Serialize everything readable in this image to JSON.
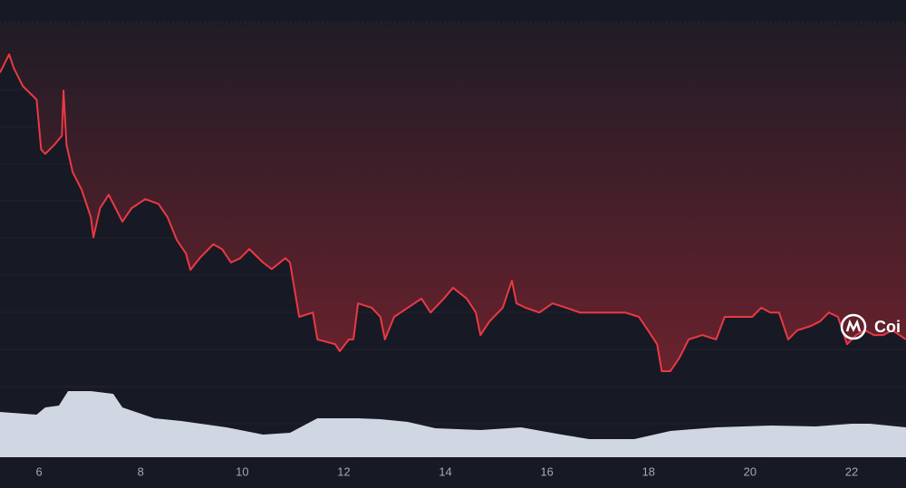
{
  "chart_data": [
    {
      "type": "line",
      "color": "#ea3943",
      "watermark": "Coi",
      "x": [
        5.23,
        5.41,
        5.5,
        5.68,
        5.95,
        6.04,
        6.12,
        6.3,
        6.45,
        6.48,
        6.54,
        6.66,
        6.84,
        7.02,
        7.07,
        7.2,
        7.37,
        7.55,
        7.64,
        7.82,
        8.09,
        8.35,
        8.53,
        8.71,
        8.89,
        8.98,
        9.16,
        9.43,
        9.6,
        9.78,
        9.96,
        10.14,
        10.41,
        10.58,
        10.85,
        10.94,
        11.12,
        11.39,
        11.48,
        11.83,
        11.92,
        12.1,
        12.19,
        12.28,
        12.55,
        12.72,
        12.81,
        12.99,
        13.26,
        13.53,
        13.71,
        13.97,
        14.15,
        14.42,
        14.6,
        14.69,
        14.87,
        15.13,
        15.31,
        15.4,
        15.58,
        15.85,
        16.11,
        16.38,
        16.65,
        16.92,
        17.18,
        17.54,
        17.81,
        17.99,
        18.17,
        18.26,
        18.43,
        18.61,
        18.79,
        19.06,
        19.33,
        19.5,
        19.77,
        20.04,
        20.22,
        20.4,
        20.57,
        20.75,
        20.93,
        21.2,
        21.38,
        21.55,
        21.73,
        21.91,
        22.09,
        22.26,
        22.44,
        22.62,
        22.8,
        23.07
      ],
      "values": [
        88.5,
        92.7,
        89.6,
        85.4,
        82.3,
        70.8,
        69.8,
        71.9,
        74.0,
        84.4,
        71.9,
        65.6,
        61.5,
        55.2,
        50.6,
        57.3,
        60.4,
        56.3,
        54.2,
        57.3,
        59.4,
        58.3,
        55.2,
        50.0,
        46.9,
        43.1,
        45.8,
        49.0,
        47.9,
        44.8,
        45.8,
        47.9,
        44.8,
        43.3,
        45.8,
        44.8,
        32.3,
        33.3,
        27.1,
        26.0,
        24.4,
        27.1,
        27.1,
        35.4,
        34.4,
        32.3,
        27.1,
        32.3,
        34.4,
        36.5,
        33.3,
        36.5,
        39.0,
        36.5,
        33.3,
        28.1,
        31.3,
        34.4,
        40.6,
        35.4,
        34.4,
        33.3,
        35.4,
        34.4,
        33.3,
        33.3,
        33.3,
        33.3,
        32.3,
        29.2,
        26.0,
        19.8,
        19.8,
        22.9,
        27.1,
        28.1,
        27.1,
        32.3,
        32.3,
        32.3,
        34.4,
        33.3,
        33.3,
        27.1,
        29.2,
        30.2,
        31.3,
        33.3,
        32.3,
        26.0,
        28.1,
        29.2,
        28.1,
        28.1,
        29.2,
        27.1
      ],
      "xlim": [
        5.23,
        23.07
      ],
      "ylim": [
        0,
        100
      ],
      "xticks": [
        6,
        8,
        10,
        12,
        14,
        16,
        18,
        20,
        22
      ]
    },
    {
      "type": "area",
      "color": "#d1d6e3",
      "x": [
        5.23,
        5.95,
        6.12,
        6.39,
        6.57,
        7.02,
        7.46,
        7.64,
        8.27,
        8.8,
        9.69,
        10.41,
        10.94,
        11.48,
        11.92,
        12.28,
        12.72,
        13.26,
        13.8,
        14.69,
        15.49,
        16.29,
        16.83,
        17.72,
        18.43,
        19.33,
        20.4,
        21.29,
        22.0,
        22.36,
        23.07
      ],
      "values": [
        50,
        47,
        55,
        57,
        73,
        73,
        70,
        55,
        43,
        40,
        33,
        25,
        27,
        43,
        43,
        43,
        42,
        39,
        32,
        30,
        33,
        25,
        20,
        20,
        29,
        33,
        35,
        34,
        37,
        37,
        33
      ],
      "xlim": [
        5.23,
        23.07
      ],
      "ylim": [
        0,
        480
      ]
    }
  ]
}
